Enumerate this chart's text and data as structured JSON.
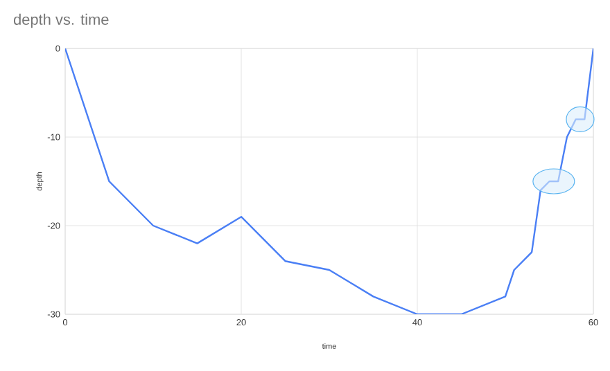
{
  "chart_data": {
    "type": "line",
    "title": "depth vs. time",
    "xlabel": "time",
    "ylabel": "depth",
    "x": [
      0,
      5,
      10,
      15,
      20,
      25,
      30,
      35,
      40,
      45,
      50,
      51,
      53,
      54,
      55,
      56,
      57,
      58,
      59,
      60
    ],
    "series": [
      {
        "color": "#4a7ff5",
        "values": [
          0,
          -15,
          -20,
          -22,
          -19,
          -24,
          -25,
          -28,
          -30,
          -30,
          -28,
          -25,
          -23,
          -16,
          -15,
          -15,
          -10,
          -8,
          -8,
          0
        ]
      }
    ],
    "xlim": [
      0,
      60
    ],
    "ylim": [
      -30,
      0
    ],
    "xticks": [
      0,
      20,
      40,
      60
    ],
    "yticks": [
      -30,
      -20,
      -10,
      0
    ],
    "grid": true,
    "marker": "none",
    "line_style": "solid"
  }
}
